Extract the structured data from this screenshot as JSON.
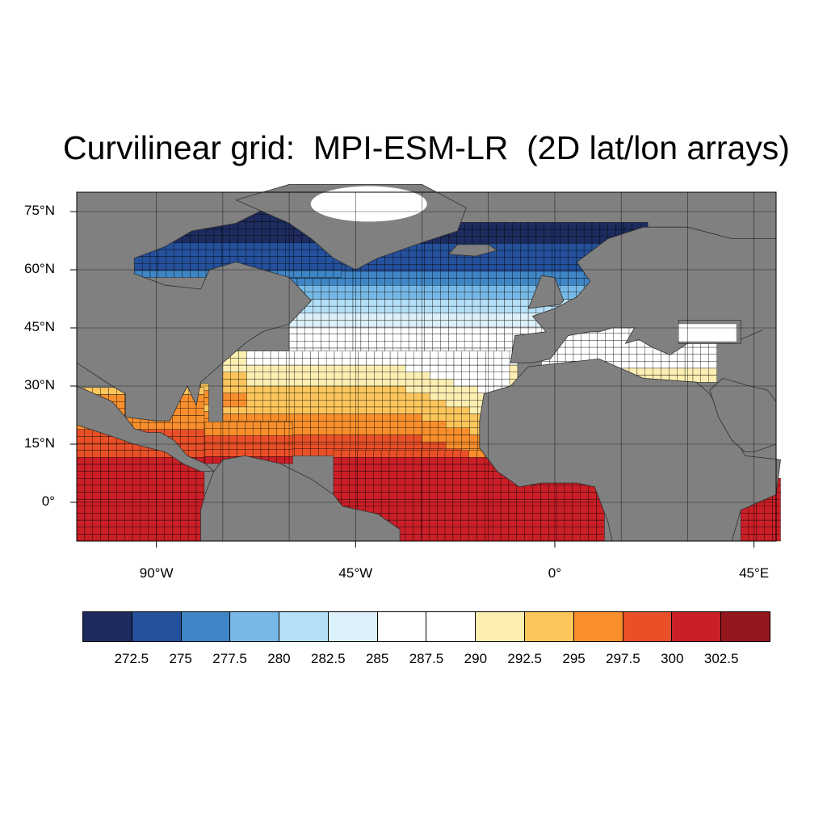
{
  "title": "Curvilinear grid:  MPI-ESM-LR  (2D lat/lon arrays)",
  "map": {
    "projection": "cylindrical-equidistant",
    "lon_range": [
      -108,
      50
    ],
    "lat_range": [
      -10,
      80
    ],
    "land_color": "#808080",
    "missing_color": "#ffffff",
    "grid_line_color": "#000000"
  },
  "lat_ticks": [
    {
      "value": 75,
      "label": "75°N"
    },
    {
      "value": 60,
      "label": "60°N"
    },
    {
      "value": 45,
      "label": "45°N"
    },
    {
      "value": 30,
      "label": "30°N"
    },
    {
      "value": 15,
      "label": "15°N"
    },
    {
      "value": 0,
      "label": "0°"
    }
  ],
  "lon_ticks": [
    {
      "value": -90,
      "label": "90°W"
    },
    {
      "value": -45,
      "label": "45°W"
    },
    {
      "value": 0,
      "label": "0°"
    },
    {
      "value": 45,
      "label": "45°E"
    }
  ],
  "colorbar": {
    "colors": [
      "#1d2b5e",
      "#24509c",
      "#3f86c6",
      "#76b9e6",
      "#b3e0f6",
      "#dcf0f9",
      "#ffffff",
      "#ffffff",
      "#fdefb2",
      "#fcc65c",
      "#f98f2c",
      "#ea5027",
      "#cb1f27",
      "#93171c"
    ],
    "labels": [
      "272.5",
      "275",
      "277.5",
      "280",
      "282.5",
      "285",
      "287.5",
      "290",
      "292.5",
      "295",
      "297.5",
      "300",
      "302.5"
    ]
  }
}
